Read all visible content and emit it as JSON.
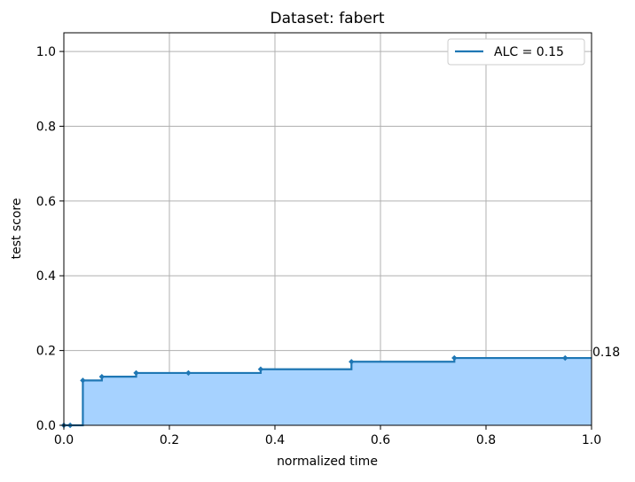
{
  "chart_data": {
    "type": "line",
    "step": true,
    "title": "Dataset: fabert",
    "xlabel": "normalized time",
    "ylabel": "test score",
    "xlim": [
      0,
      1
    ],
    "ylim": [
      0,
      1.05
    ],
    "xticks": [
      "0.0",
      "0.2",
      "0.4",
      "0.6",
      "0.8",
      "1.0"
    ],
    "yticks": [
      "0.0",
      "0.2",
      "0.4",
      "0.6",
      "0.8",
      "1.0"
    ],
    "grid": true,
    "legend_position": "top-right",
    "series": [
      {
        "name": "ALC = 0.15",
        "color": "#1f77b4",
        "fill_color": "#a6d2ff",
        "points": [
          {
            "x": 0.0,
            "y": 0.0
          },
          {
            "x": 0.012,
            "y": 0.0
          },
          {
            "x": 0.036,
            "y": 0.12
          },
          {
            "x": 0.072,
            "y": 0.13
          },
          {
            "x": 0.137,
            "y": 0.14
          },
          {
            "x": 0.236,
            "y": 0.14
          },
          {
            "x": 0.373,
            "y": 0.15
          },
          {
            "x": 0.545,
            "y": 0.17
          },
          {
            "x": 0.74,
            "y": 0.18
          },
          {
            "x": 0.95,
            "y": 0.18
          },
          {
            "x": 1.0,
            "y": 0.18
          }
        ]
      }
    ],
    "annotations": [
      {
        "text": "0.18",
        "x": 1.0,
        "y": 0.18
      }
    ]
  }
}
